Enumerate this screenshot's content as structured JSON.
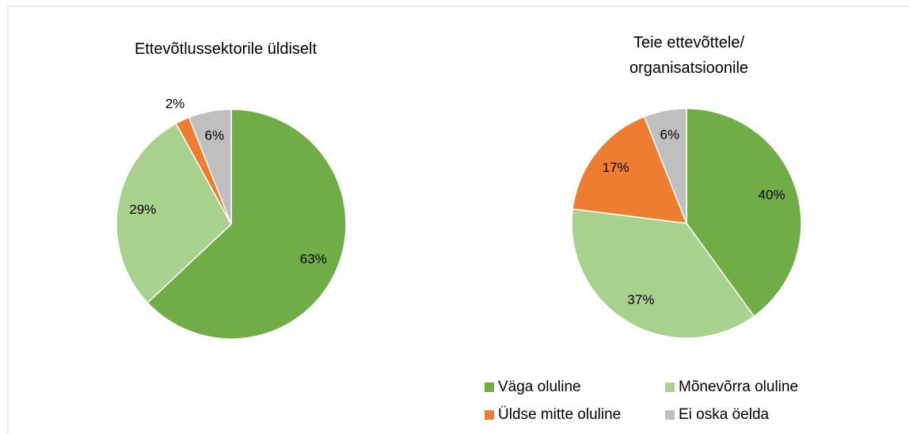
{
  "chart_data": [
    {
      "type": "pie",
      "title": "Ettevõtlussektorile üldiselt",
      "categories": [
        "Väga oluline",
        "Mõnevõrra oluline",
        "Üldse mitte oluline",
        "Ei oska öelda"
      ],
      "values": [
        63,
        29,
        2,
        6
      ],
      "value_labels": [
        "63%",
        "29%",
        "2%",
        "6%"
      ],
      "colors": [
        "#70ad47",
        "#a9d18e",
        "#ed7d31",
        "#bfbfbf"
      ]
    },
    {
      "type": "pie",
      "title": "Teie ettevõttele/ organisatsioonile",
      "categories": [
        "Väga oluline",
        "Mõnevõrra oluline",
        "Üldse mitte oluline",
        "Ei oska öelda"
      ],
      "values": [
        40,
        37,
        17,
        6
      ],
      "value_labels": [
        "40%",
        "37%",
        "17%",
        "6%"
      ],
      "colors": [
        "#70ad47",
        "#a9d18e",
        "#ed7d31",
        "#bfbfbf"
      ]
    }
  ]
}
